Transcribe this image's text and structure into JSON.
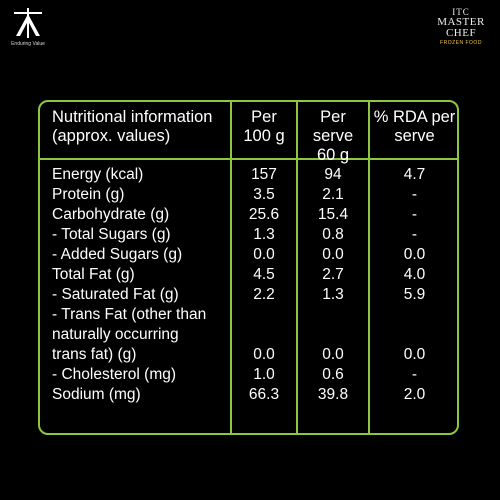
{
  "brand": {
    "left_tagline": "Enduring Value",
    "right_itc": "ITC",
    "right_line1": "MASTER",
    "right_line2": "CHEF",
    "right_sub": "FROZEN FOOD"
  },
  "colors": {
    "accent": "#8dc63f",
    "background": "#000000",
    "text": "#ffffff",
    "logo_gold": "#f2c33b"
  },
  "table": {
    "headers": {
      "col1_line1": "Nutritional information",
      "col1_line2": "(approx. values)",
      "col2_line1": "Per",
      "col2_line2": "100 g",
      "col3_line1": "Per serve",
      "col3_line2": "60 g",
      "col4_line1": "% RDA per",
      "col4_line2": "serve"
    },
    "rows": [
      {
        "label": "Energy (kcal)",
        "per100": "157",
        "perserve": "94",
        "rda": "4.7"
      },
      {
        "label": "Protein (g)",
        "per100": "3.5",
        "perserve": "2.1",
        "rda": "-"
      },
      {
        "label": "Carbohydrate (g)",
        "per100": "25.6",
        "perserve": "15.4",
        "rda": "-"
      },
      {
        "label": "- Total Sugars (g)",
        "per100": "1.3",
        "perserve": "0.8",
        "rda": "-"
      },
      {
        "label": "- Added Sugars (g)",
        "per100": "0.0",
        "perserve": "0.0",
        "rda": "0.0"
      },
      {
        "label": "Total Fat (g)",
        "per100": "4.5",
        "perserve": "2.7",
        "rda": "4.0"
      },
      {
        "label": "- Saturated Fat (g)",
        "per100": "2.2",
        "perserve": "1.3",
        "rda": "5.9"
      },
      {
        "label_line1": "- Trans Fat (other than",
        "label_line2": "naturally occurring",
        "label_line3": "trans fat) (g)",
        "per100": "0.0",
        "perserve": "0.0",
        "rda": "0.0"
      },
      {
        "label": "- Cholesterol (mg)",
        "per100": "1.0",
        "perserve": "0.6",
        "rda": "-"
      },
      {
        "label": "Sodium (mg)",
        "per100": "66.3",
        "perserve": "39.8",
        "rda": "2.0"
      }
    ]
  }
}
